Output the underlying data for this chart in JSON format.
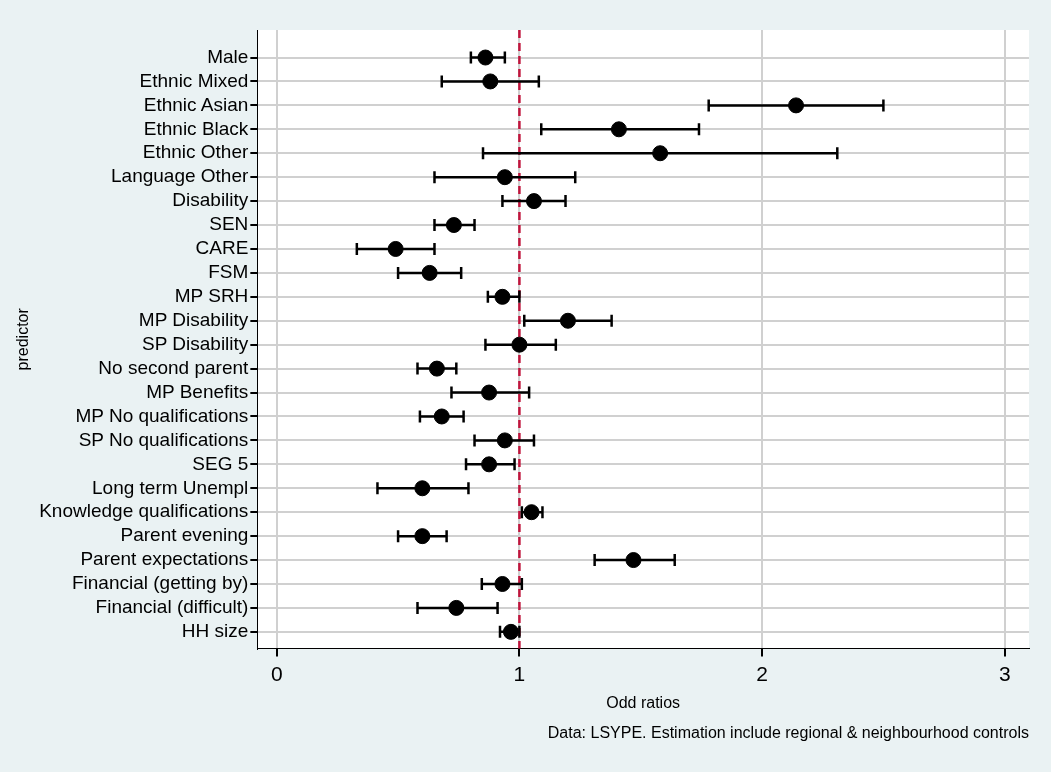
{
  "chart_data": {
    "type": "scatter",
    "orientation": "horizontal",
    "xlabel": "Odd ratios",
    "ylabel": "predictor",
    "categories": [
      "Male",
      "Ethnic Mixed",
      "Ethnic Asian",
      "Ethnic Black",
      "Ethnic Other",
      "Language Other",
      "Disability",
      "SEN",
      "CARE",
      "FSM",
      "MP SRH",
      "MP Disability",
      "SP Disability",
      "No second parent",
      "MP Benefits",
      "MP No qualifications",
      "SP No qualifications",
      "SEG 5",
      "Long term Unempl",
      "Knowledge qualifications",
      "Parent evening",
      "Parent expectations",
      "Financial (getting by)",
      "Financial (difficult)",
      "HH size"
    ],
    "series": [
      {
        "color": "#000000",
        "values": [
          0.86,
          0.88,
          2.14,
          1.41,
          1.58,
          0.94,
          1.06,
          0.73,
          0.49,
          0.63,
          0.93,
          1.2,
          1.0,
          0.66,
          0.875,
          0.68,
          0.94,
          0.875,
          0.6,
          1.05,
          0.6,
          1.47,
          0.93,
          0.74,
          0.965
        ],
        "errors": [
          [
            0.8,
            0.94
          ],
          [
            0.68,
            1.08
          ],
          [
            1.78,
            2.5
          ],
          [
            1.09,
            1.74
          ],
          [
            0.85,
            2.31
          ],
          [
            0.65,
            1.23
          ],
          [
            0.93,
            1.19
          ],
          [
            0.65,
            0.815
          ],
          [
            0.33,
            0.65
          ],
          [
            0.5,
            0.76
          ],
          [
            0.87,
            1.0
          ],
          [
            1.02,
            1.38
          ],
          [
            0.86,
            1.15
          ],
          [
            0.58,
            0.74
          ],
          [
            0.72,
            1.04
          ],
          [
            0.59,
            0.77
          ],
          [
            0.815,
            1.06
          ],
          [
            0.78,
            0.98
          ],
          [
            0.415,
            0.79
          ],
          [
            1.01,
            1.095
          ],
          [
            0.5,
            0.7
          ],
          [
            1.31,
            1.64
          ],
          [
            0.845,
            1.01
          ],
          [
            0.58,
            0.91
          ],
          [
            0.92,
            1.0
          ]
        ]
      }
    ],
    "xlim": [
      -0.08,
      3.1
    ],
    "xticks": [
      0,
      1,
      2,
      3
    ],
    "ref_lines": [
      {
        "axis": "x",
        "value": 1,
        "color": "#c0143c",
        "line_style": "dashed"
      }
    ],
    "annotations": [
      "Data: LSYPE. Estimation include regional & neighbourhood controls"
    ],
    "grid": true,
    "legend": false,
    "marker": "circle"
  }
}
